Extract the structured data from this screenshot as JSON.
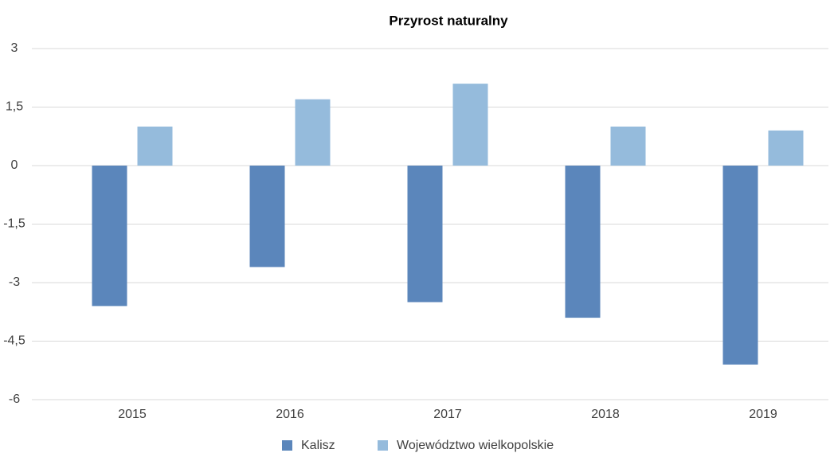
{
  "chart_data": {
    "type": "bar",
    "title": "Przyrost naturalny",
    "categories": [
      "2015",
      "2016",
      "2017",
      "2018",
      "2019"
    ],
    "series": [
      {
        "name": "Kalisz",
        "color": "#5b86bb",
        "values": [
          -3.6,
          -2.6,
          -3.5,
          -3.9,
          -5.1
        ]
      },
      {
        "name": "Województwo wielkopolskie",
        "color": "#95bbdc",
        "values": [
          1.0,
          1.7,
          2.1,
          1.0,
          0.9
        ]
      }
    ],
    "ylim": [
      -6,
      3
    ],
    "yticks": [
      3,
      {
        "value": 1.5,
        "label": "1,5"
      },
      0,
      {
        "value": -1.5,
        "label": "-1,5"
      },
      -3,
      {
        "value": -4.5,
        "label": "-4,5"
      },
      -6
    ],
    "grid": true,
    "legend": "bottom"
  }
}
